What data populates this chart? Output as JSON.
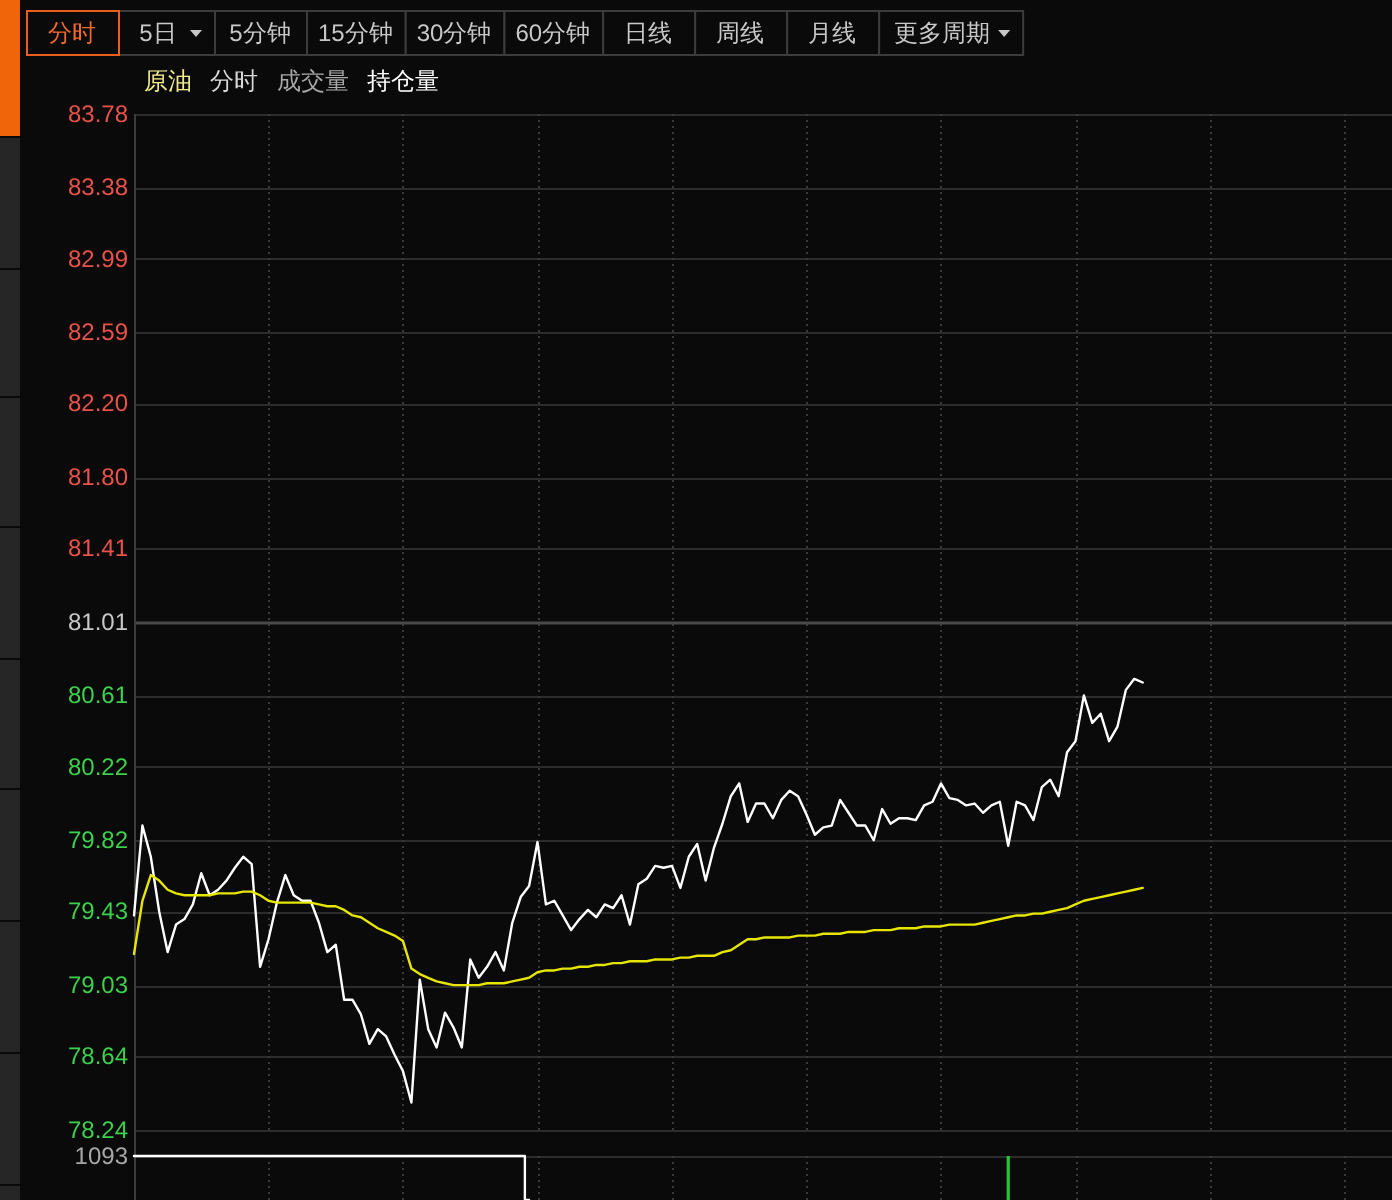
{
  "chart_data": [
    {
      "type": "line",
      "title": "原油",
      "subtitle": "分时 成交量 持仓量",
      "annotations": [
        "分时",
        "5日",
        "5分钟",
        "15分钟",
        "30分钟",
        "60分钟",
        "日线",
        "周线",
        "月线",
        "更多周期"
      ],
      "categories": [
        null,
        null,
        null,
        null,
        null,
        null,
        null,
        null,
        null,
        null,
        null,
        null,
        null,
        null,
        null,
        null,
        null,
        null,
        null,
        null,
        null,
        null,
        null,
        null,
        null,
        null,
        null,
        null,
        null,
        null,
        null,
        null,
        null,
        null,
        null,
        null,
        null,
        null,
        null,
        null,
        null,
        null,
        null,
        null,
        null,
        null,
        null,
        null,
        null,
        null,
        null,
        null,
        null,
        null,
        null,
        null,
        null,
        null,
        null,
        null,
        null,
        null,
        null,
        null,
        null,
        null,
        null,
        null,
        null,
        null,
        null,
        null,
        null,
        null,
        null,
        null,
        null,
        null,
        null,
        null,
        null,
        null,
        null,
        null,
        null,
        null,
        null,
        null,
        null,
        null,
        null,
        null,
        null,
        null,
        null,
        null,
        null,
        null,
        null,
        null,
        null,
        null,
        null,
        null,
        null,
        null,
        null,
        null,
        null,
        null,
        null,
        null,
        null,
        null,
        null,
        null,
        null,
        null,
        null,
        null,
        null,
        null,
        null,
        null,
        null,
        null,
        null,
        null,
        null,
        null,
        null,
        null,
        null,
        null,
        null,
        null,
        null,
        null,
        null,
        null,
        null,
        null,
        null,
        null,
        null,
        null,
        null,
        null,
        null,
        null
      ],
      "series": [
        {
          "color": "#ffffff",
          "values": [
            79.41,
            79.9,
            79.73,
            79.43,
            79.21,
            79.36,
            79.39,
            79.47,
            79.64,
            79.52,
            79.55,
            79.6,
            79.67,
            79.73,
            79.69,
            79.13,
            79.28,
            79.48,
            79.63,
            79.52,
            79.49,
            79.49,
            79.37,
            79.21,
            79.25,
            78.95,
            78.95,
            78.87,
            78.71,
            78.79,
            78.75,
            78.65,
            78.56,
            78.39,
            79.06,
            78.79,
            78.69,
            78.88,
            78.8,
            78.69,
            79.17,
            79.07,
            79.13,
            79.21,
            79.11,
            79.37,
            79.51,
            79.57,
            79.81,
            79.47,
            79.49,
            79.41,
            79.33,
            79.39,
            79.44,
            79.4,
            79.47,
            79.45,
            79.52,
            79.36,
            79.58,
            79.61,
            79.68,
            79.67,
            79.68,
            79.56,
            79.73,
            79.8,
            79.6,
            79.78,
            79.91,
            80.06,
            80.13,
            79.92,
            80.02,
            80.02,
            79.94,
            80.04,
            80.09,
            80.06,
            79.96,
            79.85,
            79.89,
            79.9,
            80.04,
            79.97,
            79.9,
            79.9,
            79.82,
            79.99,
            79.91,
            79.94,
            79.94,
            79.93,
            80.01,
            80.03,
            80.13,
            80.05,
            80.04,
            80.01,
            80.02,
            79.97,
            80.01,
            80.03,
            79.79,
            80.03,
            80.01,
            79.93,
            80.11,
            80.15,
            80.06,
            80.3,
            80.36,
            80.61,
            80.46,
            80.51,
            80.36,
            80.44,
            80.64,
            80.7,
            80.68,
            null,
            null,
            null,
            null,
            null,
            null,
            null,
            null,
            null,
            null,
            null,
            null,
            null,
            null,
            null,
            null,
            null,
            null,
            null,
            null,
            null,
            null,
            null,
            null,
            null,
            null,
            null,
            null,
            null
          ]
        },
        {
          "color": "#e6e600",
          "values": [
            79.2,
            79.49,
            79.63,
            79.6,
            79.55,
            79.53,
            79.52,
            79.52,
            79.52,
            79.52,
            79.53,
            79.53,
            79.53,
            79.54,
            79.54,
            79.52,
            79.49,
            79.48,
            79.48,
            79.48,
            79.48,
            79.48,
            79.47,
            79.46,
            79.46,
            79.44,
            79.41,
            79.4,
            79.37,
            79.34,
            79.32,
            79.3,
            79.27,
            79.12,
            79.09,
            79.07,
            79.05,
            79.04,
            79.03,
            79.03,
            79.03,
            79.03,
            79.04,
            79.04,
            79.04,
            79.05,
            79.06,
            79.07,
            79.1,
            79.11,
            79.11,
            79.12,
            79.12,
            79.13,
            79.13,
            79.14,
            79.14,
            79.15,
            79.15,
            79.16,
            79.16,
            79.16,
            79.17,
            79.17,
            79.17,
            79.18,
            79.18,
            79.19,
            79.19,
            79.19,
            79.21,
            79.22,
            79.25,
            79.28,
            79.28,
            79.29,
            79.29,
            79.29,
            79.29,
            79.3,
            79.3,
            79.3,
            79.31,
            79.31,
            79.31,
            79.32,
            79.32,
            79.32,
            79.33,
            79.33,
            79.33,
            79.34,
            79.34,
            79.34,
            79.35,
            79.35,
            79.35,
            79.36,
            79.36,
            79.36,
            79.36,
            79.37,
            79.38,
            79.39,
            79.4,
            79.41,
            79.41,
            79.42,
            79.42,
            79.43,
            79.44,
            79.45,
            79.47,
            79.49,
            79.5,
            79.51,
            79.52,
            79.53,
            79.54,
            79.55,
            79.56,
            null,
            null,
            null,
            null,
            null,
            null,
            null,
            null,
            null,
            null,
            null,
            null,
            null,
            null,
            null,
            null,
            null,
            null,
            null,
            null,
            null,
            null,
            null,
            null,
            null,
            null,
            null,
            null,
            null
          ]
        }
      ],
      "ylim": [
        78.24,
        83.78
      ],
      "yticks": [
        78.24,
        78.64,
        79.03,
        79.43,
        79.82,
        80.22,
        80.61,
        81.01,
        81.41,
        {
          "value": 81.8,
          "label": "81.80"
        },
        {
          "value": 82.2,
          "label": "82.20"
        },
        82.59,
        82.99,
        83.38,
        83.78
      ],
      "grid": true,
      "ref_lines": [
        {
          "axis": "y",
          "value": 81.01,
          "color": "#4a4a4a"
        }
      ]
    },
    {
      "type": "step",
      "categories": [
        null,
        null,
        null,
        null,
        null,
        null,
        null,
        null,
        null,
        null,
        null,
        null,
        null,
        null,
        null,
        null,
        null,
        null,
        null,
        null,
        null,
        null,
        null,
        null,
        null,
        null,
        null,
        null,
        null,
        null,
        null,
        null,
        null,
        null,
        null,
        null,
        null,
        null,
        null,
        null,
        null,
        null,
        null,
        null,
        null,
        null,
        null,
        null,
        null,
        null,
        null,
        null,
        null,
        null,
        null,
        null,
        null,
        null,
        null,
        null,
        null,
        null,
        null,
        null,
        null,
        null,
        null,
        null,
        null,
        null,
        null,
        null,
        null,
        null,
        null,
        null,
        null,
        null,
        null,
        null,
        null,
        null,
        null,
        null,
        null,
        null,
        null,
        null,
        null,
        null,
        null,
        null,
        null,
        null,
        null,
        null,
        null,
        null,
        null,
        null,
        null,
        null,
        null,
        null,
        null,
        null,
        null,
        null,
        null,
        null,
        null,
        null,
        null,
        null,
        null,
        null,
        null,
        null,
        null,
        null,
        null,
        null,
        null,
        null,
        null,
        null,
        null,
        null,
        null,
        null,
        null,
        null,
        null,
        null,
        null,
        null,
        null,
        null,
        null,
        null,
        null,
        null,
        null,
        null,
        null,
        null,
        null,
        null,
        null,
        null
      ],
      "series": [
        {
          "color": "#ffffff",
          "values": [
            1093,
            1093,
            1093,
            1093,
            1093,
            1093,
            1093,
            1093,
            1093,
            1093,
            1093,
            1093,
            1093,
            1093,
            1093,
            1093,
            1093,
            1093,
            1093,
            1093,
            1093,
            1093,
            1093,
            1093,
            1093,
            1093,
            1093,
            1093,
            1093,
            1093,
            1093,
            1093,
            1093,
            1093,
            1093,
            1093,
            1093,
            1093,
            1093,
            1093,
            1093,
            1093,
            1093,
            1093,
            1093,
            1093,
            1093,
            0,
            null,
            null,
            null,
            null,
            null,
            null,
            null,
            null,
            null,
            null,
            null,
            null,
            null,
            null,
            null,
            null,
            null,
            null,
            null,
            null,
            null,
            null,
            null,
            null,
            null,
            null,
            null,
            null,
            null,
            null,
            null,
            null,
            null,
            null,
            null,
            null,
            null,
            null,
            null,
            null,
            null,
            null,
            null,
            null,
            null,
            null,
            null,
            null,
            null,
            null,
            null,
            null,
            null,
            null,
            null,
            null,
            null,
            null,
            null,
            null,
            null,
            null,
            null,
            null,
            null,
            null,
            null,
            null,
            null,
            null,
            null,
            null,
            null,
            null,
            null,
            null,
            null,
            null,
            null,
            null,
            null,
            null,
            null,
            null,
            null,
            null,
            null,
            null,
            null,
            null,
            null,
            null,
            null,
            null,
            null,
            null,
            null,
            null,
            null,
            null,
            null,
            null
          ]
        },
        {
          "type": "bar",
          "color": "#22c832",
          "values": [
            null,
            null,
            null,
            null,
            null,
            null,
            null,
            null,
            null,
            null,
            null,
            null,
            null,
            null,
            null,
            null,
            null,
            null,
            null,
            null,
            null,
            null,
            null,
            null,
            null,
            null,
            null,
            null,
            null,
            null,
            null,
            null,
            null,
            null,
            null,
            null,
            null,
            null,
            null,
            null,
            null,
            null,
            null,
            null,
            null,
            null,
            null,
            null,
            null,
            null,
            null,
            null,
            null,
            null,
            null,
            null,
            null,
            null,
            null,
            null,
            null,
            null,
            null,
            null,
            null,
            null,
            null,
            null,
            null,
            null,
            null,
            null,
            null,
            null,
            null,
            null,
            null,
            null,
            null,
            null,
            null,
            null,
            null,
            null,
            null,
            null,
            null,
            null,
            null,
            null,
            null,
            null,
            null,
            null,
            null,
            null,
            null,
            null,
            null,
            null,
            null,
            null,
            null,
            null,
            1093,
            null,
            null,
            null,
            null,
            null,
            null,
            null,
            null,
            null,
            null,
            null,
            null,
            null,
            null,
            null,
            null,
            null,
            null,
            null,
            null,
            null,
            null,
            null,
            null,
            null,
            null,
            null,
            null,
            null,
            null,
            null,
            null,
            null,
            null,
            null,
            null,
            null,
            null,
            null,
            null,
            null,
            null,
            null,
            null,
            null
          ]
        }
      ],
      "ylim": [
        0,
        1093
      ],
      "yticks": [
        1093
      ],
      "grid": true
    }
  ]
}
